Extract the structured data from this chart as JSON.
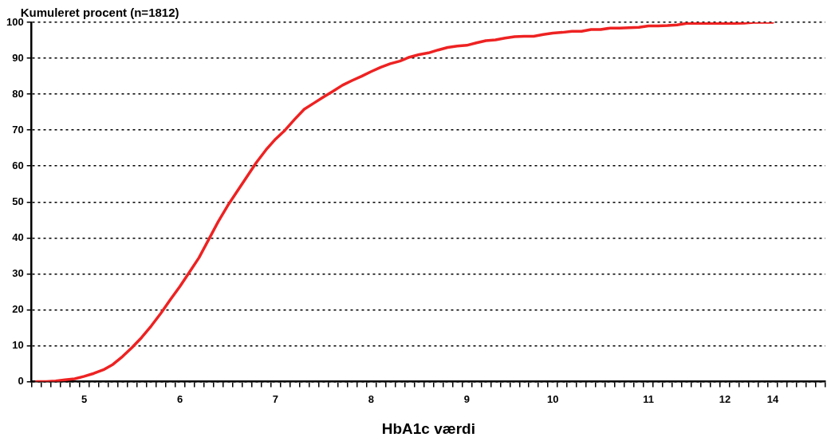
{
  "chart_data": {
    "type": "line",
    "ylabel": "Kumuleret procent (n=1812)",
    "xlabel": "HbA1c værdi",
    "categories": [
      null,
      null,
      null,
      null,
      null,
      "5",
      null,
      null,
      null,
      null,
      null,
      null,
      null,
      null,
      null,
      "6",
      null,
      null,
      null,
      null,
      null,
      null,
      null,
      null,
      null,
      "7",
      null,
      null,
      null,
      null,
      null,
      null,
      null,
      null,
      null,
      "8",
      null,
      null,
      null,
      null,
      null,
      null,
      null,
      null,
      null,
      "9",
      null,
      null,
      null,
      null,
      null,
      null,
      null,
      null,
      "10",
      null,
      null,
      null,
      null,
      null,
      null,
      null,
      null,
      null,
      "11",
      null,
      null,
      null,
      null,
      null,
      null,
      null,
      "12",
      null,
      null,
      null,
      null,
      "14",
      null,
      null,
      null,
      null,
      null
    ],
    "series": [
      {
        "color": "#ee2222",
        "values": [
          0,
          0,
          0.2,
          0.5,
          0.8,
          1.5,
          2.3,
          3.3,
          4.8,
          7,
          9.5,
          12.3,
          15.5,
          19,
          22.8,
          26.5,
          30.5,
          34.5,
          39.5,
          44.5,
          49,
          53,
          57,
          61,
          64.5,
          67.5,
          70,
          73,
          75.8,
          77.5,
          79.2,
          80.8,
          82.5,
          83.8,
          85,
          86.3,
          87.5,
          88.5,
          89.2,
          90.3,
          91,
          91.5,
          92.3,
          93,
          93.4,
          93.6,
          94.3,
          94.9,
          95.1,
          95.6,
          96,
          96.1,
          96.1,
          96.6,
          97,
          97.2,
          97.5,
          97.5,
          98,
          98,
          98.4,
          98.4,
          98.5,
          98.6,
          99,
          99,
          99.1,
          99.3,
          99.7,
          99.7,
          99.7,
          99.7,
          99.7,
          99.7,
          99.8,
          100,
          100,
          100,
          null,
          null,
          null,
          null,
          null
        ]
      }
    ],
    "ylim": [
      0,
      100
    ],
    "yticks": [
      0,
      10,
      20,
      30,
      40,
      50,
      60,
      70,
      80,
      90,
      100
    ],
    "grid": "y",
    "marker": "none",
    "line_style": "solid",
    "legend": false
  }
}
